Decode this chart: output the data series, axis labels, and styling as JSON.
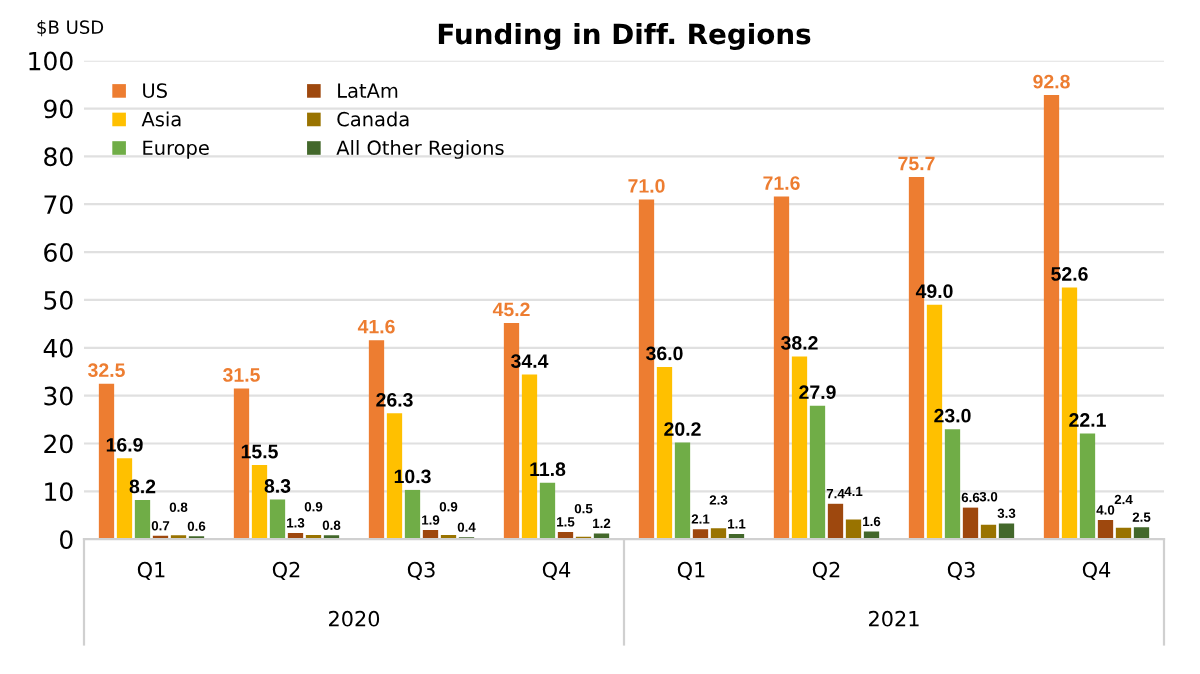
{
  "chart_data": {
    "type": "bar",
    "title": "Funding in Diff. Regions",
    "ylabel": "$B USD",
    "categories": [
      "Q1",
      "Q2",
      "Q3",
      "Q4",
      "Q1",
      "Q2",
      "Q3",
      "Q4"
    ],
    "annotations": [
      "2020",
      "2021"
    ],
    "ylim": [
      0,
      100
    ],
    "yticks": [
      0,
      10,
      20,
      30,
      40,
      50,
      60,
      70,
      80,
      90,
      100
    ],
    "grid": "y",
    "legend": "top left",
    "series": [
      {
        "name": "US",
        "color": "#ed7d31",
        "values": [
          32.5,
          31.5,
          41.6,
          45.2,
          71.0,
          71.6,
          75.7,
          92.8
        ],
        "value_labels": [
          "32.5",
          "31.5",
          "41.6",
          "45.2",
          "71.0",
          "71.6",
          "75.7",
          "92.8"
        ]
      },
      {
        "name": "Asia",
        "color": "#ffc000",
        "values": [
          16.9,
          15.5,
          26.3,
          34.4,
          36.0,
          38.2,
          49.0,
          52.6
        ],
        "value_labels": [
          "16.9",
          "15.5",
          "26.3",
          "34.4",
          "36.0",
          "38.2",
          "49.0",
          "52.6"
        ]
      },
      {
        "name": "Europe",
        "color": "#70ad47",
        "values": [
          8.2,
          8.3,
          10.3,
          11.8,
          20.2,
          27.9,
          23.0,
          22.1
        ],
        "value_labels": [
          "8.2",
          "8.3",
          "10.3",
          "11.8",
          "20.2",
          "27.9",
          "23.0",
          "22.1"
        ]
      },
      {
        "name": "LatAm",
        "color": "#9e480e",
        "values": [
          0.7,
          1.3,
          1.9,
          1.5,
          2.1,
          7.4,
          6.6,
          4.0
        ],
        "value_labels": [
          "0.7",
          "1.3",
          "1.9",
          "1.5",
          "2.1",
          "7.4",
          "6.6",
          "4.0"
        ]
      },
      {
        "name": "Canada",
        "color": "#997300",
        "values": [
          0.8,
          0.9,
          0.9,
          0.5,
          2.3,
          4.1,
          3.0,
          2.4
        ],
        "value_labels": [
          "0.8",
          "0.9",
          "0.9",
          "0.5",
          "2.3",
          "4.1",
          "3.0",
          "2.4"
        ]
      },
      {
        "name": "All Other Regions",
        "color": "#43682b",
        "values": [
          0.6,
          0.8,
          0.4,
          1.2,
          1.1,
          1.6,
          3.3,
          2.5
        ],
        "value_labels": [
          "0.6",
          "0.8",
          "0.4",
          "1.2",
          "1.1",
          "1.6",
          "3.3",
          "2.5"
        ]
      }
    ]
  }
}
